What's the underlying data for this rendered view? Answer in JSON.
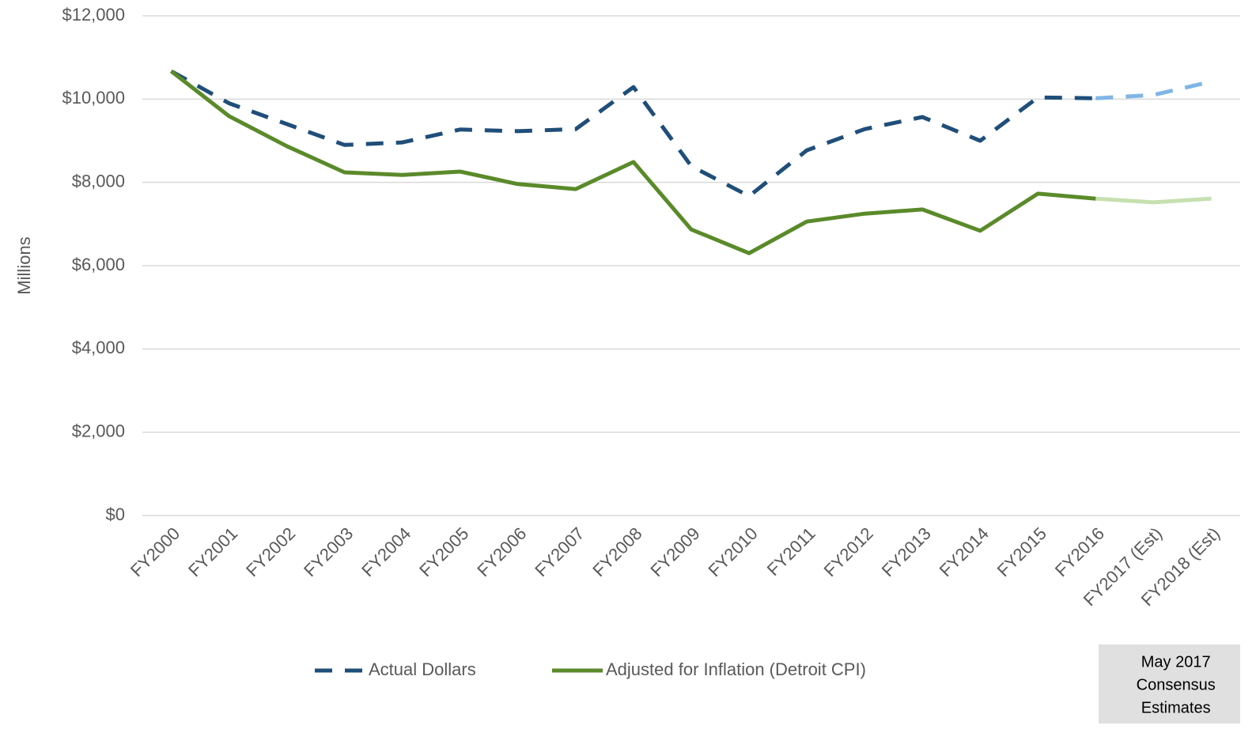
{
  "chart_data": {
    "type": "line",
    "y_label": "Millions",
    "categories": [
      "FY2000",
      "FY2001",
      "FY2002",
      "FY2003",
      "FY2004",
      "FY2005",
      "FY2006",
      "FY2007",
      "FY2008",
      "FY2009",
      "FY2010",
      "FY2011",
      "FY2012",
      "FY2013",
      "FY2014",
      "FY2015",
      "FY2016",
      "FY2017 (Est)",
      "FY2018 (Est)"
    ],
    "series": [
      {
        "name": "Actual Dollars",
        "color": "#1f4e79",
        "estimate_color": "#7fb6e6",
        "dashed": true,
        "values": [
          10670,
          9900,
          9400,
          8900,
          8960,
          9270,
          9230,
          9280,
          10290,
          8390,
          7670,
          8770,
          9280,
          9570,
          9000,
          10040,
          10020,
          10100,
          10420
        ]
      },
      {
        "name": "Adjusted for Inflation (Detroit CPI)",
        "color": "#5a8a2a",
        "estimate_color": "#c6e0b0",
        "dashed": false,
        "values": [
          10670,
          9590,
          8870,
          8240,
          8180,
          8260,
          7960,
          7840,
          8490,
          6870,
          6300,
          7060,
          7250,
          7350,
          6840,
          7730,
          7610,
          7520,
          7610
        ]
      }
    ],
    "estimate_start": "FY2016",
    "annotation": {
      "lines": [
        "May 2017",
        "Consensus",
        "Estimates"
      ]
    },
    "ylim": [
      0,
      12000
    ],
    "yticks": [
      {
        "value": 0,
        "label": "$0"
      },
      {
        "value": 2000,
        "label": "$2,000"
      },
      {
        "value": 4000,
        "label": "$4,000"
      },
      {
        "value": 6000,
        "label": "$6,000"
      },
      {
        "value": 8000,
        "label": "$8,000"
      },
      {
        "value": 10000,
        "label": "$10,000"
      },
      {
        "value": 12000,
        "label": "$12,000"
      }
    ],
    "grid": true,
    "legend": "bottom"
  }
}
